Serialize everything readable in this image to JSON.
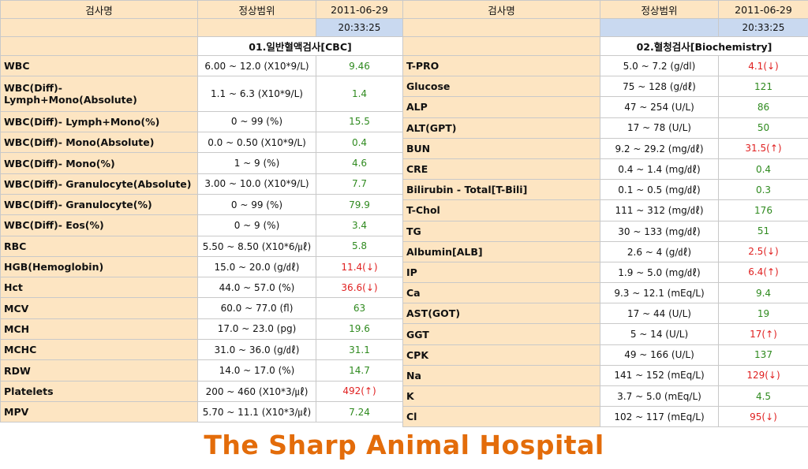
{
  "left": {
    "col_name": "검사명",
    "col_range": "정상범위",
    "date": "2011-06-29",
    "time": "20:33:25",
    "section_title": "01.일반혈액검사[CBC]",
    "rows": [
      {
        "name": "WBC",
        "range": "6.00 ~ 12.0 (X10*9/L)",
        "value": "9.46",
        "status": "normal"
      },
      {
        "name": "WBC(Diff)- Lymph+Mono(Absolute)",
        "range": "1.1 ~ 6.3 (X10*9/L)",
        "value": "1.4",
        "status": "normal"
      },
      {
        "name": "WBC(Diff)- Lymph+Mono(%)",
        "range": "0 ~ 99 (%)",
        "value": "15.5",
        "status": "normal"
      },
      {
        "name": "WBC(Diff)- Mono(Absolute)",
        "range": "0.0 ~ 0.50 (X10*9/L)",
        "value": "0.4",
        "status": "normal"
      },
      {
        "name": "WBC(Diff)- Mono(%)",
        "range": "1 ~ 9 (%)",
        "value": "4.6",
        "status": "normal"
      },
      {
        "name": "WBC(Diff)- Granulocyte(Absolute)",
        "range": "3.00 ~ 10.0 (X10*9/L)",
        "value": "7.7",
        "status": "normal"
      },
      {
        "name": "WBC(Diff)- Granulocyte(%)",
        "range": "0 ~ 99 (%)",
        "value": "79.9",
        "status": "normal"
      },
      {
        "name": "WBC(Diff)- Eos(%)",
        "range": "0 ~ 9 (%)",
        "value": "3.4",
        "status": "normal"
      },
      {
        "name": "RBC",
        "range": "5.50 ~ 8.50 (X10*6/㎕)",
        "value": "5.8",
        "status": "normal"
      },
      {
        "name": "HGB(Hemoglobin)",
        "range": "15.0 ~ 20.0 (g/㎗)",
        "value": "11.4(↓)",
        "status": "abnormal"
      },
      {
        "name": "Hct",
        "range": "44.0 ~ 57.0 (%)",
        "value": "36.6(↓)",
        "status": "abnormal"
      },
      {
        "name": "MCV",
        "range": "60.0 ~ 77.0 (fl)",
        "value": "63",
        "status": "normal"
      },
      {
        "name": "MCH",
        "range": "17.0 ~ 23.0 (pg)",
        "value": "19.6",
        "status": "normal"
      },
      {
        "name": "MCHC",
        "range": "31.0 ~ 36.0 (g/㎗)",
        "value": "31.1",
        "status": "normal"
      },
      {
        "name": "RDW",
        "range": "14.0 ~ 17.0 (%)",
        "value": "14.7",
        "status": "normal"
      },
      {
        "name": "Platelets",
        "range": "200 ~ 460 (X10*3/㎕)",
        "value": "492(↑)",
        "status": "abnormal"
      },
      {
        "name": "MPV",
        "range": "5.70 ~ 11.1 (X10*3/㎕)",
        "value": "7.24",
        "status": "normal"
      }
    ]
  },
  "right": {
    "col_name": "검사명",
    "col_range": "정상범위",
    "date": "2011-06-29",
    "time": "20:33:25",
    "section_title": "02.혈청검사[Biochemistry]",
    "rows": [
      {
        "name": "T-PRO",
        "range": "5.0 ~ 7.2 (g/dl)",
        "value": "4.1(↓)",
        "status": "abnormal"
      },
      {
        "name": "Glucose",
        "range": "75 ~ 128 (g/㎗)",
        "value": "121",
        "status": "normal"
      },
      {
        "name": "ALP",
        "range": "47 ~ 254 (U/L)",
        "value": "86",
        "status": "normal"
      },
      {
        "name": "ALT(GPT)",
        "range": "17 ~ 78 (U/L)",
        "value": "50",
        "status": "normal"
      },
      {
        "name": "BUN",
        "range": "9.2 ~ 29.2 (mg/㎗)",
        "value": "31.5(↑)",
        "status": "abnormal"
      },
      {
        "name": "CRE",
        "range": "0.4 ~ 1.4 (mg/㎗)",
        "value": "0.4",
        "status": "normal"
      },
      {
        "name": "Bilirubin - Total[T-Bili]",
        "range": "0.1 ~ 0.5 (mg/㎗)",
        "value": "0.3",
        "status": "normal"
      },
      {
        "name": "T-Chol",
        "range": "111 ~ 312 (mg/㎗)",
        "value": "176",
        "status": "normal"
      },
      {
        "name": "TG",
        "range": "30 ~ 133 (mg/㎗)",
        "value": "51",
        "status": "normal"
      },
      {
        "name": "Albumin[ALB]",
        "range": "2.6 ~ 4 (g/㎗)",
        "value": "2.5(↓)",
        "status": "abnormal"
      },
      {
        "name": "IP",
        "range": "1.9 ~ 5.0 (mg/㎗)",
        "value": "6.4(↑)",
        "status": "abnormal"
      },
      {
        "name": "Ca",
        "range": "9.3 ~ 12.1 (mEq/L)",
        "value": "9.4",
        "status": "normal"
      },
      {
        "name": "AST(GOT)",
        "range": "17 ~ 44 (U/L)",
        "value": "19",
        "status": "normal"
      },
      {
        "name": "GGT",
        "range": "5 ~ 14 (U/L)",
        "value": "17(↑)",
        "status": "abnormal"
      },
      {
        "name": "CPK",
        "range": "49 ~ 166 (U/L)",
        "value": "137",
        "status": "normal"
      },
      {
        "name": "Na",
        "range": "141 ~ 152 (mEq/L)",
        "value": "129(↓)",
        "status": "abnormal"
      },
      {
        "name": "K",
        "range": "3.7 ~ 5.0 (mEq/L)",
        "value": "4.5",
        "status": "normal"
      },
      {
        "name": "Cl",
        "range": "102 ~ 117 (mEq/L)",
        "value": "95(↓)",
        "status": "abnormal"
      }
    ]
  },
  "footer": "The Sharp Animal Hospital",
  "colors": {
    "header_bg": "#fde5c2",
    "time_bg": "#c9d9f0",
    "normal_value": "#2f8a1f",
    "abnormal_value": "#e02020",
    "footer_text": "#e36c0a"
  }
}
